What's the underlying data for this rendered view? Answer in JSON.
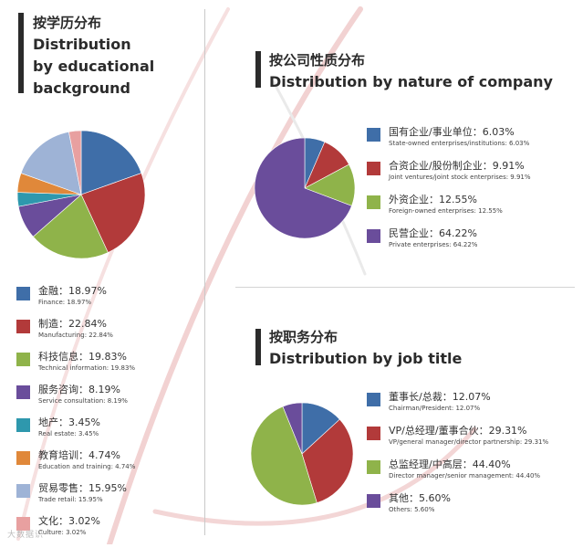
{
  "titles": {
    "education": {
      "cn": "按学历分布",
      "en1": "Distribution",
      "en2": "by educational",
      "en3": "background"
    },
    "company": {
      "cn": "按公司性质分布",
      "en": "Distribution by nature of company"
    },
    "job": {
      "cn": "按职务分布",
      "en": "Distribution by job title"
    }
  },
  "chart_data": [
    {
      "type": "pie",
      "title": "按学历分布 Distribution by educational background",
      "series": [
        {
          "name": "金融",
          "name_en": "Finance",
          "value": 18.97,
          "label": "金融：18.97%",
          "sub": "Finance: 18.97%",
          "color": "#3f6ea8"
        },
        {
          "name": "制造",
          "name_en": "Manufacturing",
          "value": 22.84,
          "label": "制造：22.84%",
          "sub": "Manufacturing: 22.84%",
          "color": "#b23a3a"
        },
        {
          "name": "科技信息",
          "name_en": "Technical information",
          "value": 19.83,
          "label": "科技信息：19.83%",
          "sub": "Technical information: 19.83%",
          "color": "#8fb34a"
        },
        {
          "name": "服务咨询",
          "name_en": "Service consultation",
          "value": 8.19,
          "label": "服务咨询：8.19%",
          "sub": "Service consultation: 8.19%",
          "color": "#6a4d9b"
        },
        {
          "name": "地产",
          "name_en": "Real estate",
          "value": 3.45,
          "label": "地产：3.45%",
          "sub": "Real estate: 3.45%",
          "color": "#2e98ad"
        },
        {
          "name": "教育培训",
          "name_en": "Education and training",
          "value": 4.74,
          "label": "教育培训：4.74%",
          "sub": "Education and training: 4.74%",
          "color": "#e0883a"
        },
        {
          "name": "贸易零售",
          "name_en": "Trade retail",
          "value": 15.95,
          "label": "贸易零售：15.95%",
          "sub": "Trade retail: 15.95%",
          "color": "#9eb3d6"
        },
        {
          "name": "文化",
          "name_en": "Culture",
          "value": 3.02,
          "label": "文化：3.02%",
          "sub": "Culture: 3.02%",
          "color": "#e8a0a0"
        }
      ]
    },
    {
      "type": "pie",
      "title": "按公司性质分布 Distribution by nature of company",
      "series": [
        {
          "name": "国有企业/事业单位",
          "name_en": "State-owned enterprises/institutions",
          "value": 6.03,
          "label": "国有企业/事业单位：6.03%",
          "sub": "State-owned enterprises/institutions: 6.03%",
          "color": "#3f6ea8"
        },
        {
          "name": "合资企业/股份制企业",
          "name_en": "Joint ventures/joint stock enterprises",
          "value": 9.91,
          "label": "合资企业/股份制企业：9.91%",
          "sub": "Joint ventures/joint stock enterprises: 9.91%",
          "color": "#b23a3a"
        },
        {
          "name": "外资企业",
          "name_en": "Foreign-owned enterprises",
          "value": 12.55,
          "label": "外资企业：12.55%",
          "sub": "Foreign-owned enterprises: 12.55%",
          "color": "#8fb34a"
        },
        {
          "name": "民营企业",
          "name_en": "Private enterprises",
          "value": 64.22,
          "label": "民营企业：64.22%",
          "sub": "Private enterprises: 64.22%",
          "color": "#6a4d9b"
        }
      ]
    },
    {
      "type": "pie",
      "title": "按职务分布 Distribution by job title",
      "series": [
        {
          "name": "董事长/总裁",
          "name_en": "Chairman/President",
          "value": 12.07,
          "label": "董事长/总裁：12.07%",
          "sub": "Chairman/President: 12.07%",
          "color": "#3f6ea8"
        },
        {
          "name": "VP/总经理/董事合伙",
          "name_en": "VP/general manager/director partnership",
          "value": 29.31,
          "label": "VP/总经理/董事合伙：29.31%",
          "sub": "VP/general manager/director partnership: 29.31%",
          "color": "#b23a3a"
        },
        {
          "name": "总监经理/中高层",
          "name_en": "Director manager/senior management",
          "value": 44.4,
          "label": "总监经理/中高层：44.40%",
          "sub": "Director manager/senior management: 44.40%",
          "color": "#8fb34a"
        },
        {
          "name": "其他",
          "name_en": "Others",
          "value": 5.6,
          "label": "其他：5.60%",
          "sub": "Others: 5.60%",
          "color": "#6a4d9b"
        }
      ]
    }
  ],
  "watermark": "大数据识"
}
